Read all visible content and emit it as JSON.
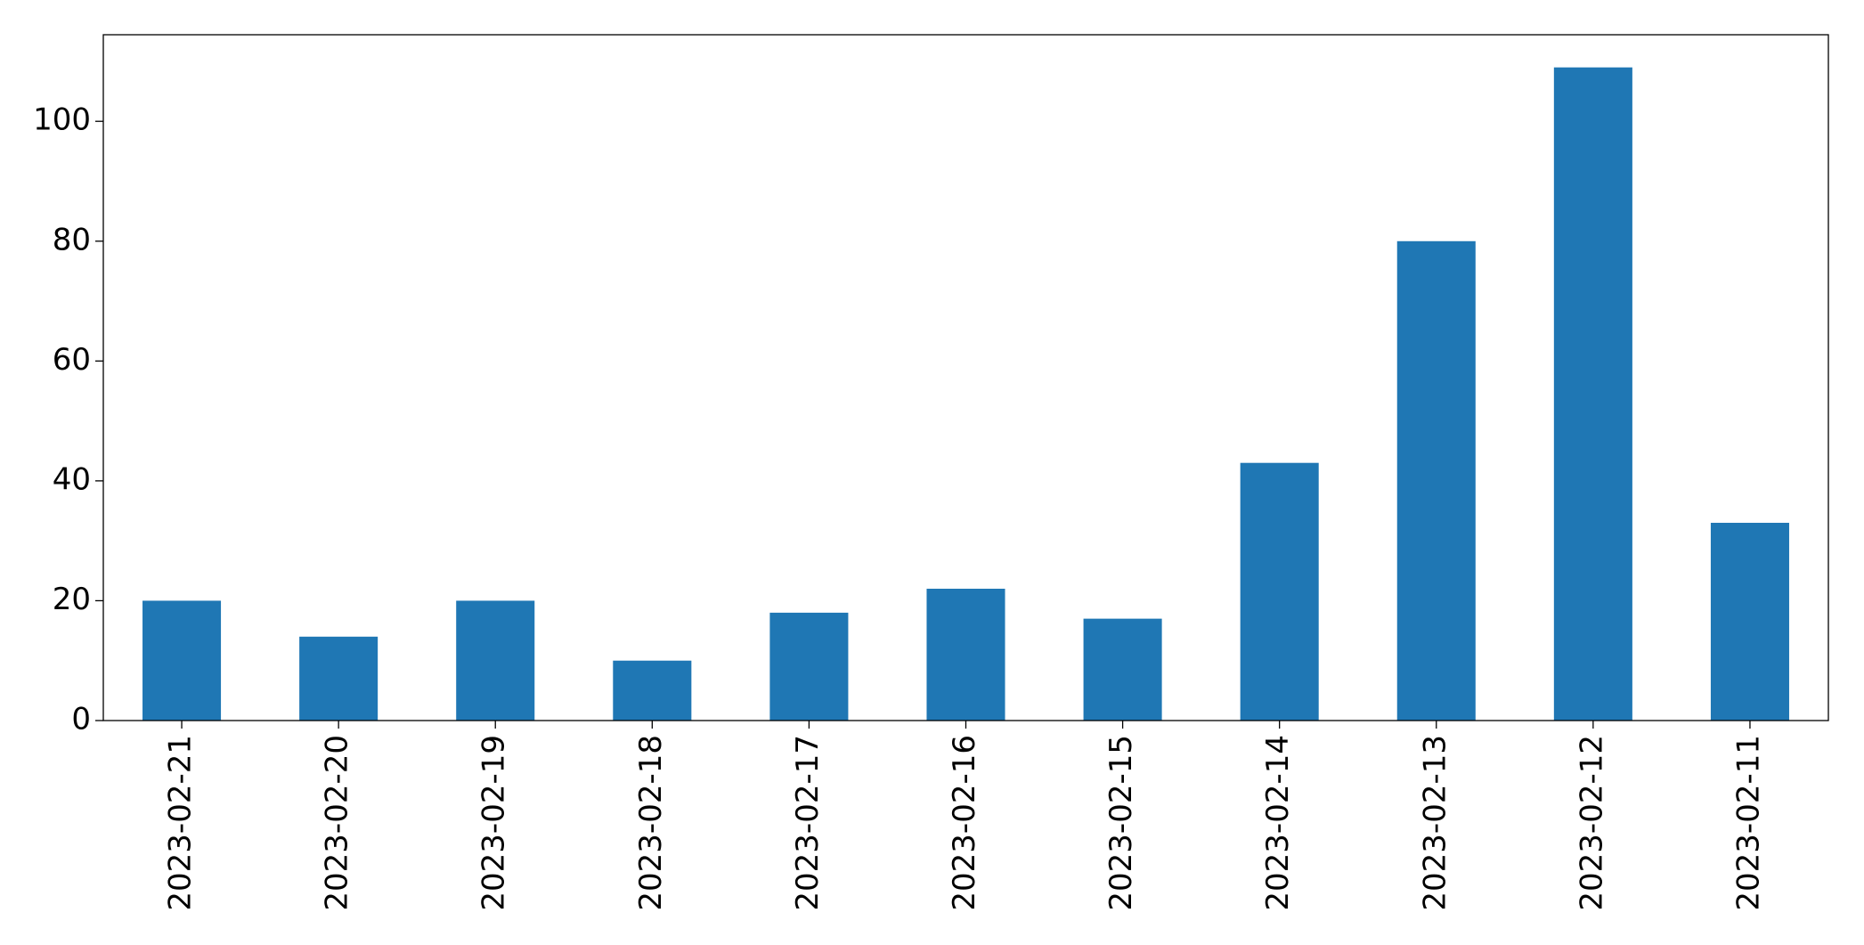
{
  "chart_data": {
    "type": "bar",
    "categories": [
      "2023-02-21",
      "2023-02-20",
      "2023-02-19",
      "2023-02-18",
      "2023-02-17",
      "2023-02-16",
      "2023-02-15",
      "2023-02-14",
      "2023-02-13",
      "2023-02-12",
      "2023-02-11"
    ],
    "values": [
      20,
      14,
      20,
      10,
      18,
      22,
      17,
      43,
      80,
      109,
      33
    ],
    "color": "#1f77b4",
    "ylim": [
      0,
      114.45
    ],
    "yticks": [
      0,
      20,
      40,
      60,
      80,
      100
    ],
    "grid": false
  }
}
